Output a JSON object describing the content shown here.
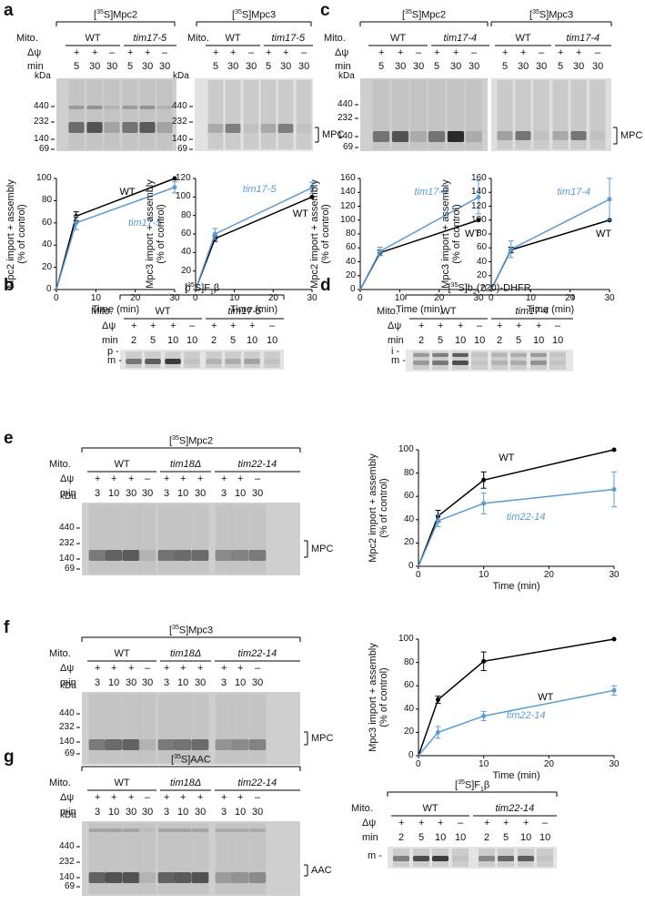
{
  "panel_labels": {
    "a": "a",
    "b": "b",
    "c": "c",
    "d": "d",
    "e": "e",
    "f": "f",
    "g": "g"
  },
  "common": {
    "mito": "Mito.",
    "dpsi": "Δψ",
    "min": "min",
    "kda": "kDa",
    "wt": "WT",
    "plus": "+",
    "minus": "–"
  },
  "marker_kda": [
    "440",
    "232",
    "140",
    "69"
  ],
  "panels": {
    "a1": {
      "title": "[35S]Mpc2",
      "mutant": "tim17-5",
      "signs": [
        "+",
        "+",
        "–",
        "+",
        "+",
        "–"
      ],
      "times": [
        "5",
        "30",
        "30",
        "5",
        "30",
        "30"
      ]
    },
    "a2": {
      "title": "[35S]Mpc3",
      "mutant": "tim17-5",
      "signs": [
        "+",
        "+",
        "–",
        "+",
        "+",
        "–"
      ],
      "times": [
        "5",
        "30",
        "30",
        "5",
        "30",
        "30"
      ],
      "band": "MPC"
    },
    "c1": {
      "title": "[35S]Mpc2",
      "mutant": "tim17-4",
      "signs": [
        "+",
        "+",
        "–",
        "+",
        "+",
        "–"
      ],
      "times": [
        "5",
        "30",
        "30",
        "5",
        "30",
        "30"
      ]
    },
    "c2": {
      "title": "[35S]Mpc3",
      "mutant": "tim17-4",
      "signs": [
        "+",
        "+",
        "–",
        "+",
        "+",
        "–"
      ],
      "times": [
        "5",
        "30",
        "30",
        "5",
        "30",
        "30"
      ],
      "band": "MPC"
    },
    "b": {
      "title": "[35S]F1β",
      "mutant": "tim17-5",
      "signs": [
        "+",
        "+",
        "+",
        "–",
        "+",
        "+",
        "+",
        "–"
      ],
      "times": [
        "2",
        "5",
        "10",
        "10",
        "2",
        "5",
        "10",
        "10"
      ],
      "bands": [
        "p",
        "m"
      ]
    },
    "d": {
      "title": "[35S]b2(220)-DHFR",
      "mutant": "tim17-4",
      "signs": [
        "+",
        "+",
        "+",
        "–",
        "+",
        "+",
        "+",
        "–"
      ],
      "times": [
        "2",
        "5",
        "10",
        "10",
        "2",
        "5",
        "10",
        "10"
      ],
      "bands": [
        "i",
        "m"
      ]
    },
    "e": {
      "title": "[35S]Mpc2",
      "strains": [
        "WT",
        "tim18Δ",
        "tim22-14"
      ],
      "signs": [
        "+",
        "+",
        "+",
        "–",
        "+",
        "+",
        "+",
        "+",
        "+",
        "–"
      ],
      "times": [
        "3",
        "10",
        "30",
        "30",
        "3",
        "10",
        "30",
        "3",
        "10",
        "30"
      ],
      "band": "MPC"
    },
    "f": {
      "title": "[35S]Mpc3",
      "strains": [
        "WT",
        "tim18Δ",
        "tim22-14"
      ],
      "signs": [
        "+",
        "+",
        "+",
        "–",
        "+",
        "+",
        "+",
        "+",
        "+",
        "–"
      ],
      "times": [
        "3",
        "10",
        "30",
        "30",
        "3",
        "10",
        "30",
        "3",
        "10",
        "30"
      ],
      "band": "MPC"
    },
    "g": {
      "title": "[35S]AAC",
      "strains": [
        "WT",
        "tim18Δ",
        "tim22-14"
      ],
      "signs": [
        "+",
        "+",
        "+",
        "–",
        "+",
        "+",
        "+",
        "+",
        "+",
        "–"
      ],
      "times": [
        "3",
        "10",
        "30",
        "30",
        "3",
        "10",
        "30",
        "3",
        "10",
        "30"
      ],
      "band": "AAC"
    },
    "g2": {
      "title": "[35S]F1β",
      "mutant": "tim22-14",
      "signs": [
        "+",
        "+",
        "+",
        "–",
        "+",
        "+",
        "+",
        "–"
      ],
      "times": [
        "2",
        "5",
        "10",
        "10",
        "2",
        "5",
        "10",
        "10"
      ],
      "bands": [
        "m"
      ]
    }
  },
  "chart_data": [
    {
      "id": "a-left",
      "type": "line",
      "ylabel": "Mpc2 import + assembly (% of control)",
      "xlabel": "Time (min)",
      "xlim": [
        0,
        30
      ],
      "ylim": [
        0,
        100
      ],
      "xticks": [
        0,
        10,
        20,
        30
      ],
      "yticks": [
        0,
        20,
        40,
        60,
        80,
        100
      ],
      "series": [
        {
          "name": "WT",
          "color": "#000000",
          "x": [
            0,
            5,
            30
          ],
          "y": [
            0,
            66,
            100
          ],
          "err": [
            0,
            4,
            0
          ]
        },
        {
          "name": "tim17-5",
          "color": "#5b9bd5",
          "x": [
            0,
            5,
            30
          ],
          "y": [
            0,
            60,
            92
          ],
          "err": [
            0,
            6,
            5
          ]
        }
      ]
    },
    {
      "id": "a-right",
      "type": "line",
      "ylabel": "Mpc3 import + assembly (% of control)",
      "xlabel": "Time (min)",
      "xlim": [
        0,
        30
      ],
      "ylim": [
        0,
        120
      ],
      "xticks": [
        0,
        10,
        20,
        30
      ],
      "yticks": [
        0,
        20,
        40,
        60,
        80,
        100,
        120
      ],
      "series": [
        {
          "name": "WT",
          "color": "#000000",
          "x": [
            0,
            5,
            30
          ],
          "y": [
            0,
            55,
            100
          ],
          "err": [
            0,
            3,
            0
          ]
        },
        {
          "name": "tim17-5",
          "color": "#5b9bd5",
          "x": [
            0,
            5,
            30
          ],
          "y": [
            0,
            60,
            110
          ],
          "err": [
            0,
            6,
            6
          ]
        }
      ]
    },
    {
      "id": "c-left",
      "type": "line",
      "ylabel": "Mpc2 import + assembly (% of control)",
      "xlabel": "Time (min)",
      "xlim": [
        0,
        30
      ],
      "ylim": [
        0,
        160
      ],
      "xticks": [
        0,
        10,
        20,
        30
      ],
      "yticks": [
        0,
        20,
        40,
        60,
        80,
        100,
        120,
        140,
        160
      ],
      "series": [
        {
          "name": "WT",
          "color": "#000000",
          "x": [
            0,
            5,
            30
          ],
          "y": [
            0,
            53,
            100
          ],
          "err": [
            0,
            4,
            0
          ]
        },
        {
          "name": "tim17-4",
          "color": "#5b9bd5",
          "x": [
            0,
            5,
            30
          ],
          "y": [
            0,
            55,
            133
          ],
          "err": [
            0,
            6,
            24
          ]
        }
      ]
    },
    {
      "id": "c-right",
      "type": "line",
      "ylabel": "Mpc3 import + assembly (% of control)",
      "xlabel": "Time (min)",
      "xlim": [
        0,
        30
      ],
      "ylim": [
        0,
        160
      ],
      "xticks": [
        0,
        10,
        20,
        30
      ],
      "yticks": [
        0,
        20,
        40,
        60,
        80,
        100,
        120,
        140,
        160
      ],
      "series": [
        {
          "name": "WT",
          "color": "#000000",
          "x": [
            0,
            5,
            30
          ],
          "y": [
            0,
            57,
            100
          ],
          "err": [
            0,
            4,
            0
          ]
        },
        {
          "name": "tim17-4",
          "color": "#5b9bd5",
          "x": [
            0,
            5,
            30
          ],
          "y": [
            0,
            58,
            130
          ],
          "err": [
            0,
            12,
            30
          ]
        }
      ]
    },
    {
      "id": "e-chart",
      "type": "line",
      "ylabel": "Mpc2 import + assembly (% of control)",
      "xlabel": "Time (min)",
      "xlim": [
        0,
        30
      ],
      "ylim": [
        0,
        100
      ],
      "xticks": [
        0,
        10,
        20,
        30
      ],
      "yticks": [
        0,
        20,
        40,
        60,
        80,
        100
      ],
      "series": [
        {
          "name": "WT",
          "color": "#000000",
          "x": [
            0,
            3,
            10,
            30
          ],
          "y": [
            0,
            43,
            74,
            100
          ],
          "err": [
            0,
            5,
            7,
            0
          ]
        },
        {
          "name": "tim22-14",
          "color": "#5b9bd5",
          "x": [
            0,
            3,
            10,
            30
          ],
          "y": [
            0,
            39,
            54,
            66
          ],
          "err": [
            0,
            5,
            9,
            15
          ]
        }
      ]
    },
    {
      "id": "f-chart",
      "type": "line",
      "ylabel": "Mpc3 import + assembly (% of control)",
      "xlabel": "Time (min)",
      "xlim": [
        0,
        30
      ],
      "ylim": [
        0,
        100
      ],
      "xticks": [
        0,
        10,
        20,
        30
      ],
      "yticks": [
        0,
        20,
        40,
        60,
        80,
        100
      ],
      "series": [
        {
          "name": "WT",
          "color": "#000000",
          "x": [
            0,
            3,
            10,
            30
          ],
          "y": [
            0,
            48,
            81,
            100
          ],
          "err": [
            0,
            3,
            8,
            0
          ]
        },
        {
          "name": "tim22-14",
          "color": "#5b9bd5",
          "x": [
            0,
            3,
            10,
            30
          ],
          "y": [
            0,
            20,
            34,
            56
          ],
          "err": [
            0,
            5,
            4,
            4
          ]
        }
      ]
    }
  ]
}
